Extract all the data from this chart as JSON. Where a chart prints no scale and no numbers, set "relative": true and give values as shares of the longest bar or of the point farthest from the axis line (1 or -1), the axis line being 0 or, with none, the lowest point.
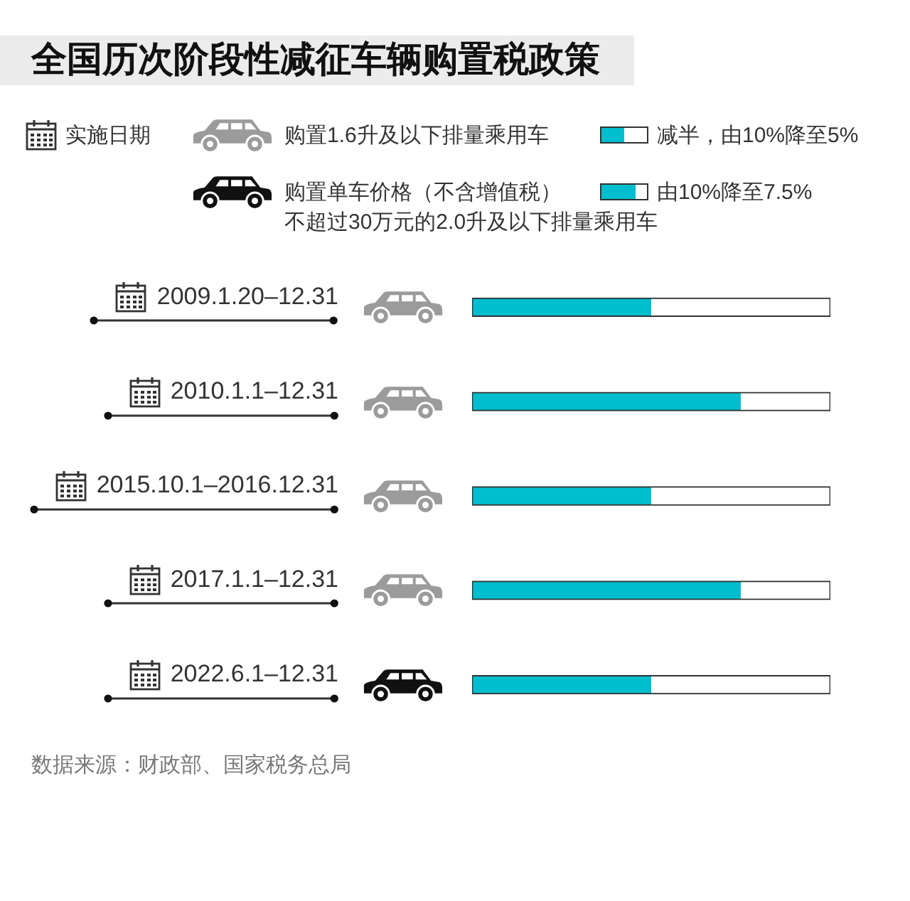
{
  "chart_data": {
    "type": "bar",
    "orientation": "horizontal",
    "stacked": true,
    "relative": true,
    "title": "全国历次阶段性减征车辆购置税政策",
    "categories": [
      "2009.1.20–12.31",
      "2010.1.1–12.31",
      "2015.10.1–2016.12.31",
      "2017.1.1–12.31",
      "2022.6.1–12.31"
    ],
    "series": [
      {
        "color": "#00becd",
        "values": [
          0.5,
          0.75,
          0.5,
          0.75,
          0.5
        ]
      },
      {
        "color": "#ffffff",
        "values": [
          0.5,
          0.25,
          0.5,
          0.25,
          0.5
        ]
      }
    ],
    "annotations": [
      "实施日期",
      "购置1.6升及以下排量乘用车",
      "购置单车价格（不含增值税）",
      "不超过30万元的2.0升及以下排量乘用车",
      "减半，由10%降至5%",
      "由10%降至7.5%",
      "数据来源：财政部、国家税务总局"
    ]
  }
}
